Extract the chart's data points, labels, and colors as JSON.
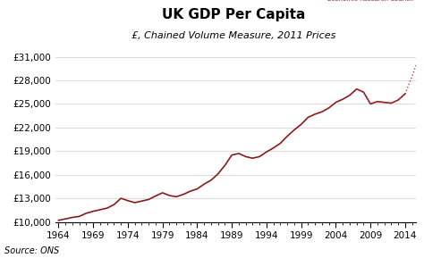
{
  "title": "UK GDP Per Capita",
  "subtitle": "£, Chained Volume Measure, 2011 Prices",
  "source": "Source: ONS",
  "bg_color": "#ffffff",
  "line_color": "#8b1a1a",
  "dotted_color": "#c04040",
  "years": [
    1964,
    1965,
    1966,
    1967,
    1968,
    1969,
    1970,
    1971,
    1972,
    1973,
    1974,
    1975,
    1976,
    1977,
    1978,
    1979,
    1980,
    1981,
    1982,
    1983,
    1984,
    1985,
    1986,
    1987,
    1988,
    1989,
    1990,
    1991,
    1992,
    1993,
    1994,
    1995,
    1996,
    1997,
    1998,
    1999,
    2000,
    2001,
    2002,
    2003,
    2004,
    2005,
    2006,
    2007,
    2008,
    2009,
    2010,
    2011,
    2012,
    2013,
    2014
  ],
  "values": [
    10200,
    10380,
    10570,
    10700,
    11100,
    11350,
    11550,
    11750,
    12200,
    13000,
    12700,
    12450,
    12650,
    12850,
    13300,
    13700,
    13350,
    13200,
    13500,
    13900,
    14200,
    14800,
    15300,
    16100,
    17200,
    18500,
    18700,
    18300,
    18100,
    18300,
    18900,
    19400,
    20000,
    20900,
    21700,
    22400,
    23300,
    23700,
    24000,
    24500,
    25200,
    25600,
    26100,
    26900,
    26500,
    25000,
    25300,
    25200,
    25100,
    25500,
    26300
  ],
  "dotted_years": [
    2007,
    2008,
    2009,
    2010,
    2011,
    2012,
    2013,
    2014,
    2015,
    2016
  ],
  "dotted_values": [
    26900,
    26500,
    25000,
    25300,
    25200,
    25100,
    25500,
    26300,
    28500,
    31000
  ],
  "ylim": [
    10000,
    31000
  ],
  "xlim": [
    1963.5,
    2015.5
  ],
  "yticks": [
    10000,
    13000,
    16000,
    19000,
    22000,
    25000,
    28000,
    31000
  ],
  "xticks": [
    1964,
    1969,
    1974,
    1979,
    1984,
    1989,
    1994,
    1999,
    2004,
    2009,
    2014
  ],
  "title_fontsize": 11,
  "subtitle_fontsize": 8,
  "tick_fontsize": 7.5,
  "source_fontsize": 7
}
